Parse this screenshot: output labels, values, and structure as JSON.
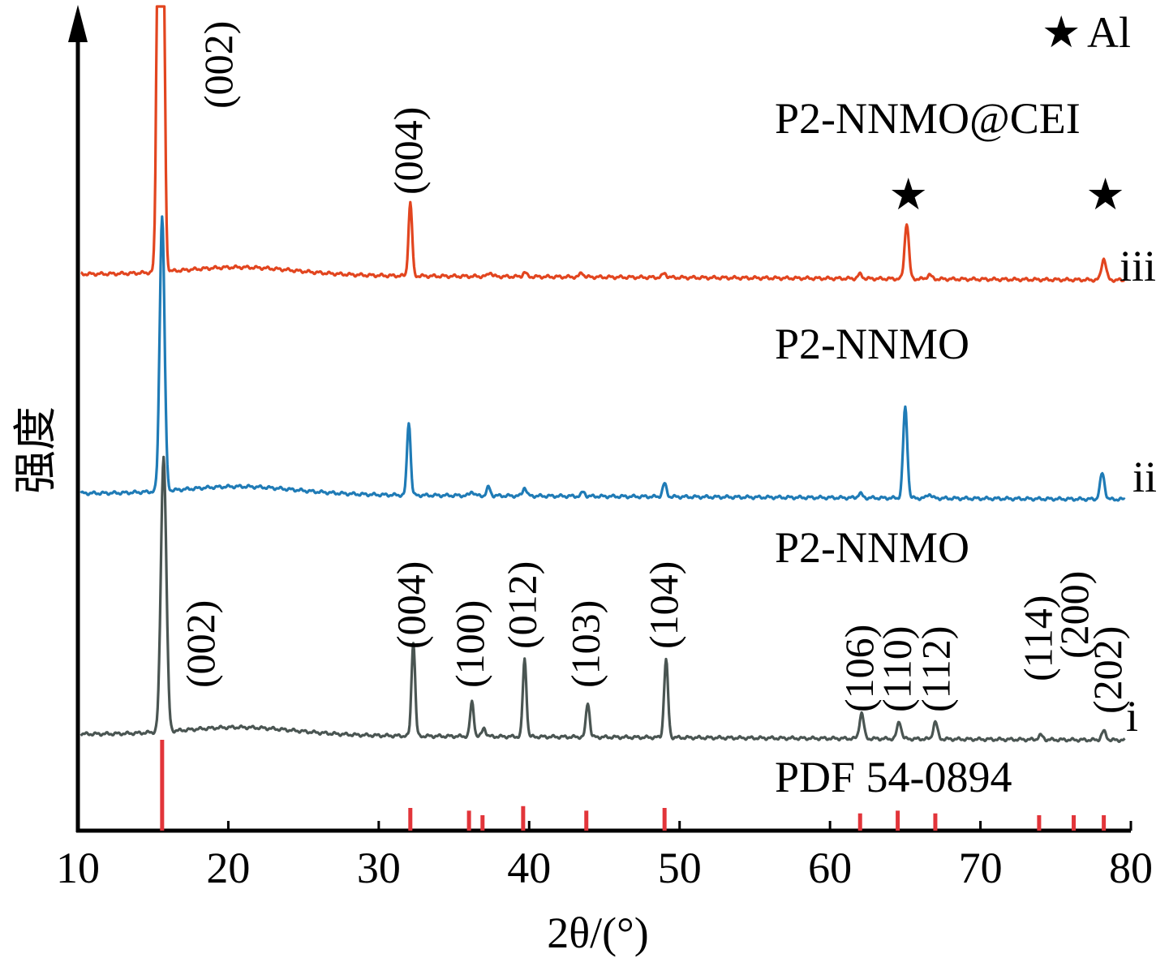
{
  "chart_data": {
    "type": "line",
    "xlabel": "2θ/(°)",
    "ylabel": "强度",
    "xlim": [
      10,
      80
    ],
    "xticks": [
      10,
      20,
      30,
      40,
      50,
      60,
      70,
      80
    ],
    "legend": {
      "symbol": "★",
      "label": "Al",
      "placement": "top-right"
    },
    "series": [
      {
        "id": "i",
        "name": "P2-NNMO",
        "tag": "i",
        "color": "#4a5552",
        "baseline": 0,
        "peaks": [
          {
            "x": 15.7,
            "h": 0.64,
            "w": 0.18
          },
          {
            "x": 32.3,
            "h": 0.22,
            "w": 0.12
          },
          {
            "x": 36.2,
            "h": 0.08,
            "w": 0.12
          },
          {
            "x": 37.0,
            "h": 0.02,
            "w": 0.12
          },
          {
            "x": 39.7,
            "h": 0.18,
            "w": 0.12
          },
          {
            "x": 43.9,
            "h": 0.08,
            "w": 0.12
          },
          {
            "x": 49.1,
            "h": 0.18,
            "w": 0.13
          },
          {
            "x": 62.1,
            "h": 0.06,
            "w": 0.14
          },
          {
            "x": 64.6,
            "h": 0.04,
            "w": 0.14
          },
          {
            "x": 67.0,
            "h": 0.04,
            "w": 0.14
          },
          {
            "x": 74.0,
            "h": 0.01,
            "w": 0.15
          },
          {
            "x": 78.2,
            "h": 0.02,
            "w": 0.15
          }
        ]
      },
      {
        "id": "ii",
        "name": "P2-NNMO",
        "tag": "ii",
        "color": "#1f7bb6",
        "baseline": 0.56,
        "peaks": [
          {
            "x": 15.6,
            "h": 0.64,
            "w": 0.16
          },
          {
            "x": 32.0,
            "h": 0.17,
            "w": 0.12
          },
          {
            "x": 36.2,
            "h": 0.01,
            "w": 0.12
          },
          {
            "x": 37.3,
            "h": 0.02,
            "w": 0.12
          },
          {
            "x": 39.7,
            "h": 0.02,
            "w": 0.12
          },
          {
            "x": 43.6,
            "h": 0.01,
            "w": 0.12
          },
          {
            "x": 49.0,
            "h": 0.03,
            "w": 0.13
          },
          {
            "x": 62.0,
            "h": 0.01,
            "w": 0.14
          },
          {
            "x": 65.0,
            "h": 0.21,
            "w": 0.14
          },
          {
            "x": 66.6,
            "h": 0.01,
            "w": 0.14
          },
          {
            "x": 78.1,
            "h": 0.06,
            "w": 0.15
          }
        ]
      },
      {
        "id": "iii",
        "name": "P2-NNMO@CEI",
        "tag": "iii",
        "color": "#e2451f",
        "baseline": 1.07,
        "peaks": [
          {
            "x": 15.5,
            "h": 2.55,
            "w": 0.16
          },
          {
            "x": 32.1,
            "h": 0.17,
            "w": 0.12
          },
          {
            "x": 37.4,
            "h": 0.01,
            "w": 0.12
          },
          {
            "x": 39.7,
            "h": 0.01,
            "w": 0.12
          },
          {
            "x": 43.5,
            "h": 0.01,
            "w": 0.12
          },
          {
            "x": 49.0,
            "h": 0.01,
            "w": 0.13
          },
          {
            "x": 62.0,
            "h": 0.01,
            "w": 0.14
          },
          {
            "x": 65.1,
            "h": 0.13,
            "w": 0.14
          },
          {
            "x": 66.6,
            "h": 0.01,
            "w": 0.14
          },
          {
            "x": 78.2,
            "h": 0.05,
            "w": 0.15
          }
        ]
      }
    ],
    "reference": {
      "name": "PDF 54-0894",
      "color": "#e2353a",
      "lines": [
        {
          "x": 15.6,
          "h": 1.0
        },
        {
          "x": 32.1,
          "h": 0.25
        },
        {
          "x": 36.0,
          "h": 0.22
        },
        {
          "x": 36.9,
          "h": 0.17
        },
        {
          "x": 39.6,
          "h": 0.27
        },
        {
          "x": 43.8,
          "h": 0.22
        },
        {
          "x": 49.0,
          "h": 0.25
        },
        {
          "x": 62.0,
          "h": 0.19
        },
        {
          "x": 64.5,
          "h": 0.22
        },
        {
          "x": 67.0,
          "h": 0.19
        },
        {
          "x": 73.9,
          "h": 0.17
        },
        {
          "x": 76.2,
          "h": 0.17
        },
        {
          "x": 78.2,
          "h": 0.17
        }
      ]
    },
    "annotations": {
      "series_iii": [
        {
          "text": "(002)",
          "x": 15.5
        },
        {
          "text": "(004)",
          "x": 32.1
        }
      ],
      "al_markers": [
        {
          "symbol": "★",
          "x": 65.1
        },
        {
          "symbol": "★",
          "x": 78.2
        }
      ],
      "series_i": [
        {
          "text": "(002)",
          "x": 15.7
        },
        {
          "text": "(004)",
          "x": 32.3
        },
        {
          "text": "(100)",
          "x": 36.2
        },
        {
          "text": "(012)",
          "x": 39.7
        },
        {
          "text": "(103)",
          "x": 43.9
        },
        {
          "text": "(104)",
          "x": 49.1
        },
        {
          "text": "(106)",
          "x": 62.1
        },
        {
          "text": "(110)",
          "x": 64.6
        },
        {
          "text": "(112)",
          "x": 67.0
        },
        {
          "text": "(114)",
          "x": 74.0
        },
        {
          "text": "(200)",
          "x": 76.2
        },
        {
          "text": "(202)",
          "x": 78.2
        }
      ]
    }
  }
}
